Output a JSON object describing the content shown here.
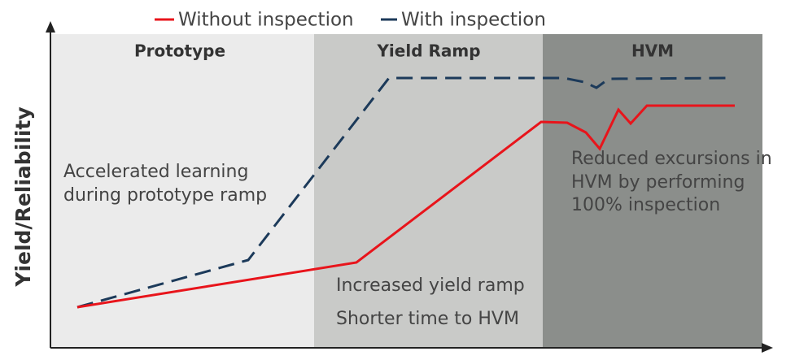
{
  "legend": [
    {
      "label": "Without inspection"
    },
    {
      "label": "With inspection"
    }
  ],
  "regions": [
    "Prototype",
    "Yield Ramp",
    "HVM"
  ],
  "y_axis_label": "Yield/Reliability",
  "annotations": [
    {
      "lines": [
        "Accelerated learning",
        "during prototype ramp"
      ]
    },
    {
      "lines": [
        "Increased yield ramp",
        "Shorter time to HVM"
      ]
    },
    {
      "lines": [
        "Reduced excursions in",
        "HVM by performing",
        "100% inspection"
      ]
    }
  ]
}
